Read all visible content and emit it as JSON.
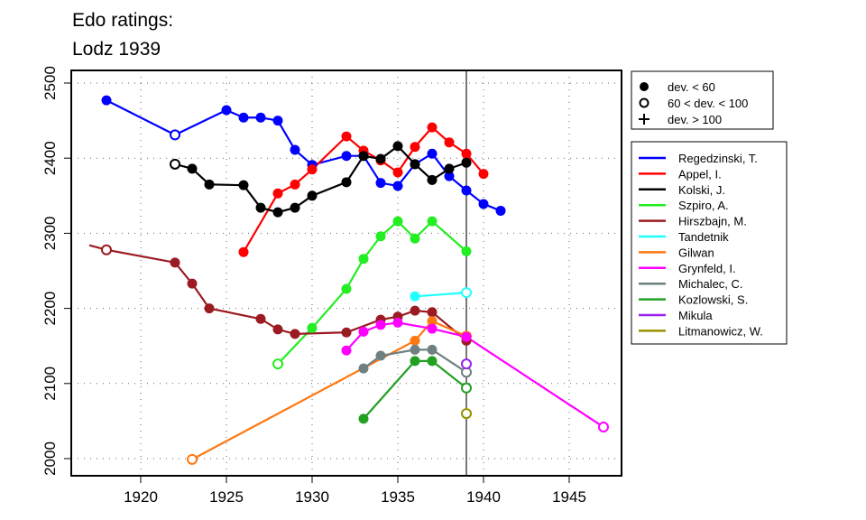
{
  "chart_data": {
    "type": "line",
    "title_lines": [
      "Edo ratings:",
      "Lodz 1939"
    ],
    "xlabel": "",
    "ylabel": "",
    "xlim": [
      1916,
      1948.5
    ],
    "ylim": [
      1977,
      2517
    ],
    "xticks": [
      1920,
      1925,
      1930,
      1935,
      1940,
      1945
    ],
    "yticks": [
      2000,
      2100,
      2200,
      2300,
      2400,
      2500
    ],
    "grid": true,
    "reference_line_x": 1939,
    "marker_legend": [
      {
        "marker": "filled",
        "label": "dev. < 60"
      },
      {
        "marker": "open",
        "label": "60 < dev. < 100"
      },
      {
        "marker": "plus",
        "label": "dev. > 100"
      }
    ],
    "legend_placement": "right",
    "series": [
      {
        "name": "Regedzinski, T.",
        "color": "#0000FF",
        "points": [
          [
            1918,
            2477,
            "f"
          ],
          [
            1922,
            2431,
            "o"
          ],
          [
            1925,
            2464,
            "f"
          ],
          [
            1926,
            2454,
            "f"
          ],
          [
            1927,
            2454,
            "f"
          ],
          [
            1928,
            2450,
            "f"
          ],
          [
            1929,
            2411,
            "f"
          ],
          [
            1930,
            2391,
            "f"
          ],
          [
            1932,
            2403,
            "f"
          ],
          [
            1933,
            2403,
            "f"
          ],
          [
            1934,
            2367,
            "f"
          ],
          [
            1935,
            2363,
            "f"
          ],
          [
            1936,
            2392,
            "f"
          ],
          [
            1937,
            2406,
            "f"
          ],
          [
            1938,
            2376,
            "f"
          ],
          [
            1939,
            2357,
            "f"
          ],
          [
            1940,
            2339,
            "f"
          ],
          [
            1941,
            2330,
            "f"
          ]
        ]
      },
      {
        "name": "Appel, I.",
        "color": "#FF0000",
        "points": [
          [
            1926,
            2275,
            "f"
          ],
          [
            1928,
            2353,
            "f"
          ],
          [
            1929,
            2365,
            "f"
          ],
          [
            1930,
            2385,
            "f"
          ],
          [
            1932,
            2429,
            "f"
          ],
          [
            1933,
            2410,
            "f"
          ],
          [
            1934,
            2397,
            "f"
          ],
          [
            1935,
            2381,
            "f"
          ],
          [
            1936,
            2415,
            "f"
          ],
          [
            1937,
            2441,
            "f"
          ],
          [
            1938,
            2421,
            "f"
          ],
          [
            1939,
            2406,
            "f"
          ],
          [
            1940,
            2379,
            "f"
          ]
        ]
      },
      {
        "name": "Kolski, J.",
        "color": "#000000",
        "points": [
          [
            1922,
            2392,
            "o"
          ],
          [
            1923,
            2386,
            "f"
          ],
          [
            1924,
            2365,
            "f"
          ],
          [
            1926,
            2364,
            "f"
          ],
          [
            1927,
            2334,
            "f"
          ],
          [
            1928,
            2328,
            "f"
          ],
          [
            1929,
            2334,
            "f"
          ],
          [
            1930,
            2350,
            "f"
          ],
          [
            1932,
            2368,
            "f"
          ],
          [
            1933,
            2403,
            "f"
          ],
          [
            1934,
            2399,
            "f"
          ],
          [
            1935,
            2416,
            "f"
          ],
          [
            1936,
            2392,
            "f"
          ],
          [
            1937,
            2371,
            "f"
          ],
          [
            1938,
            2386,
            "f"
          ],
          [
            1939,
            2394,
            "f"
          ]
        ]
      },
      {
        "name": "Szpiro, A.",
        "color": "#22EE22",
        "points": [
          [
            1928,
            2126,
            "o"
          ],
          [
            1930,
            2174,
            "f"
          ],
          [
            1932,
            2226,
            "f"
          ],
          [
            1933,
            2266,
            "f"
          ],
          [
            1934,
            2296,
            "f"
          ],
          [
            1935,
            2316,
            "f"
          ],
          [
            1936,
            2293,
            "f"
          ],
          [
            1937,
            2316,
            "f"
          ],
          [
            1939,
            2276,
            "f"
          ]
        ]
      },
      {
        "name": "Hirszbajn, M.",
        "color": "#9B1B22",
        "points": [
          [
            1917,
            2284,
            "n"
          ],
          [
            1918,
            2278,
            "o"
          ],
          [
            1922,
            2261,
            "f"
          ],
          [
            1923,
            2233,
            "f"
          ],
          [
            1924,
            2200,
            "f"
          ],
          [
            1927,
            2186,
            "f"
          ],
          [
            1928,
            2172,
            "f"
          ],
          [
            1929,
            2166,
            "f"
          ],
          [
            1932,
            2168,
            "f"
          ],
          [
            1934,
            2185,
            "f"
          ],
          [
            1935,
            2189,
            "f"
          ],
          [
            1936,
            2197,
            "f"
          ],
          [
            1937,
            2195,
            "f"
          ],
          [
            1939,
            2157,
            "f"
          ]
        ]
      },
      {
        "name": "Tandetnik",
        "color": "#22FFFF",
        "points": [
          [
            1936,
            2216,
            "f"
          ],
          [
            1939,
            2221,
            "o"
          ]
        ]
      },
      {
        "name": "Gilwan",
        "color": "#FF7711",
        "points": [
          [
            1923,
            1999,
            "o"
          ],
          [
            1936,
            2157,
            "f"
          ],
          [
            1937,
            2183,
            "f"
          ],
          [
            1939,
            2163,
            "o"
          ]
        ]
      },
      {
        "name": "Grynfeld, I.",
        "color": "#FF00FF",
        "points": [
          [
            1932,
            2144,
            "f"
          ],
          [
            1933,
            2169,
            "f"
          ],
          [
            1934,
            2178,
            "f"
          ],
          [
            1935,
            2181,
            "f"
          ],
          [
            1937,
            2173,
            "f"
          ],
          [
            1939,
            2162,
            "f"
          ],
          [
            1947,
            2042,
            "o"
          ]
        ]
      },
      {
        "name": "Michalec, C.",
        "color": "#6E8080",
        "points": [
          [
            1933,
            2120,
            "f"
          ],
          [
            1934,
            2137,
            "f"
          ],
          [
            1936,
            2145,
            "f"
          ],
          [
            1937,
            2145,
            "f"
          ],
          [
            1939,
            2115,
            "o"
          ]
        ]
      },
      {
        "name": "Kozlowski, S.",
        "color": "#22A022",
        "points": [
          [
            1933,
            2053,
            "f"
          ],
          [
            1936,
            2130,
            "f"
          ],
          [
            1937,
            2130,
            "f"
          ],
          [
            1939,
            2094,
            "o"
          ]
        ]
      },
      {
        "name": "Mikula",
        "color": "#9922EE",
        "points": [
          [
            1939,
            2126,
            "o"
          ]
        ]
      },
      {
        "name": "Litmanowicz, W.",
        "color": "#999000",
        "points": [
          [
            1939,
            2060,
            "o"
          ]
        ]
      }
    ]
  }
}
